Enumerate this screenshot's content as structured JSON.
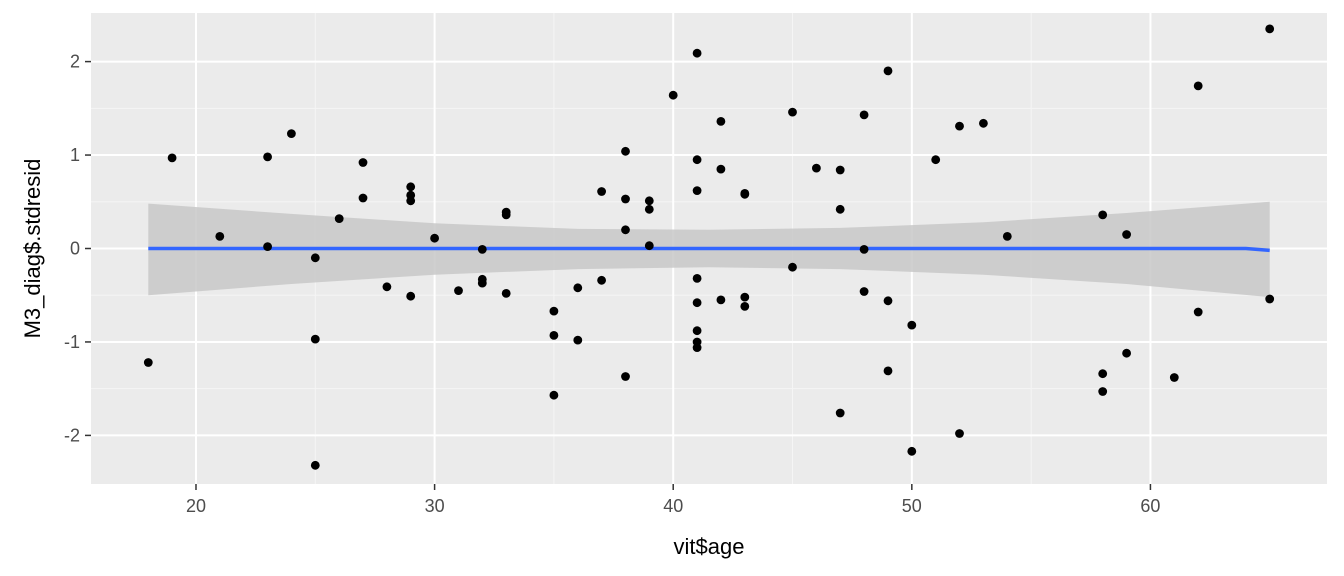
{
  "chart_data": {
    "type": "scatter",
    "xlabel": "vit$age",
    "ylabel": "M3_diag$.stdresid",
    "xlim": [
      15.6,
      67.4
    ],
    "ylim": [
      -2.52,
      2.52
    ],
    "x_ticks": [
      20,
      30,
      40,
      50,
      60
    ],
    "y_ticks": [
      -2,
      -1,
      0,
      1,
      2
    ],
    "grid": true,
    "panel_background": "#ebebeb",
    "point_color": "#000000",
    "smooth_line_color": "#3366ff",
    "confidence_band_color": "#c8c8c8",
    "points": [
      {
        "x": 18,
        "y": -1.22
      },
      {
        "x": 19,
        "y": 0.97
      },
      {
        "x": 21,
        "y": 0.13
      },
      {
        "x": 23,
        "y": 0.98
      },
      {
        "x": 23,
        "y": 0.02
      },
      {
        "x": 24,
        "y": 1.23
      },
      {
        "x": 25,
        "y": -0.1
      },
      {
        "x": 25,
        "y": -0.97
      },
      {
        "x": 25,
        "y": -2.32
      },
      {
        "x": 26,
        "y": 0.32
      },
      {
        "x": 27,
        "y": 0.92
      },
      {
        "x": 27,
        "y": 0.54
      },
      {
        "x": 28,
        "y": -0.41
      },
      {
        "x": 29,
        "y": 0.66
      },
      {
        "x": 29,
        "y": 0.57
      },
      {
        "x": 29,
        "y": 0.51
      },
      {
        "x": 29,
        "y": -0.51
      },
      {
        "x": 30,
        "y": 0.11
      },
      {
        "x": 31,
        "y": -0.45
      },
      {
        "x": 32,
        "y": -0.01
      },
      {
        "x": 32,
        "y": -0.33
      },
      {
        "x": 32,
        "y": -0.37
      },
      {
        "x": 33,
        "y": 0.39
      },
      {
        "x": 33,
        "y": 0.36
      },
      {
        "x": 33,
        "y": -0.48
      },
      {
        "x": 35,
        "y": -0.67
      },
      {
        "x": 35,
        "y": -0.93
      },
      {
        "x": 35,
        "y": -1.57
      },
      {
        "x": 36,
        "y": -0.42
      },
      {
        "x": 36,
        "y": -0.98
      },
      {
        "x": 37,
        "y": 0.61
      },
      {
        "x": 37,
        "y": -0.34
      },
      {
        "x": 38,
        "y": 1.04
      },
      {
        "x": 38,
        "y": 0.53
      },
      {
        "x": 38,
        "y": 0.2
      },
      {
        "x": 38,
        "y": -1.37
      },
      {
        "x": 39,
        "y": 0.51
      },
      {
        "x": 39,
        "y": 0.42
      },
      {
        "x": 39,
        "y": 0.03
      },
      {
        "x": 40,
        "y": 1.64
      },
      {
        "x": 41,
        "y": 2.09
      },
      {
        "x": 41,
        "y": 0.95
      },
      {
        "x": 41,
        "y": 0.62
      },
      {
        "x": 41,
        "y": -0.32
      },
      {
        "x": 41,
        "y": -0.58
      },
      {
        "x": 41,
        "y": -0.88
      },
      {
        "x": 41,
        "y": -1.0
      },
      {
        "x": 41,
        "y": -1.06
      },
      {
        "x": 42,
        "y": 1.36
      },
      {
        "x": 42,
        "y": 0.85
      },
      {
        "x": 42,
        "y": -0.55
      },
      {
        "x": 43,
        "y": 0.59
      },
      {
        "x": 43,
        "y": 0.58
      },
      {
        "x": 43,
        "y": -0.52
      },
      {
        "x": 43,
        "y": -0.62
      },
      {
        "x": 45,
        "y": 1.46
      },
      {
        "x": 45,
        "y": -0.2
      },
      {
        "x": 46,
        "y": 0.86
      },
      {
        "x": 47,
        "y": 0.84
      },
      {
        "x": 47,
        "y": 0.42
      },
      {
        "x": 47,
        "y": -1.76
      },
      {
        "x": 48,
        "y": 1.43
      },
      {
        "x": 48,
        "y": -0.01
      },
      {
        "x": 48,
        "y": -0.46
      },
      {
        "x": 49,
        "y": 1.9
      },
      {
        "x": 49,
        "y": -0.56
      },
      {
        "x": 49,
        "y": -1.31
      },
      {
        "x": 50,
        "y": -0.82
      },
      {
        "x": 50,
        "y": -2.17
      },
      {
        "x": 51,
        "y": 0.95
      },
      {
        "x": 52,
        "y": 1.31
      },
      {
        "x": 52,
        "y": -1.98
      },
      {
        "x": 53,
        "y": 1.34
      },
      {
        "x": 54,
        "y": 0.13
      },
      {
        "x": 58,
        "y": 0.36
      },
      {
        "x": 58,
        "y": -1.34
      },
      {
        "x": 58,
        "y": -1.53
      },
      {
        "x": 59,
        "y": 0.15
      },
      {
        "x": 59,
        "y": -1.12
      },
      {
        "x": 61,
        "y": -1.38
      },
      {
        "x": 62,
        "y": 1.74
      },
      {
        "x": 62,
        "y": -0.68
      },
      {
        "x": 65,
        "y": 2.35
      },
      {
        "x": 65,
        "y": -0.54
      }
    ],
    "smooth_line": [
      {
        "x": 18,
        "y": 0.0
      },
      {
        "x": 64,
        "y": 0.0
      },
      {
        "x": 65,
        "y": -0.02
      }
    ],
    "confidence_band": [
      {
        "x": 18,
        "lo": -0.5,
        "hi": 0.48
      },
      {
        "x": 24,
        "lo": -0.38,
        "hi": 0.37
      },
      {
        "x": 30,
        "lo": -0.28,
        "hi": 0.27
      },
      {
        "x": 36,
        "lo": -0.22,
        "hi": 0.21
      },
      {
        "x": 41.5,
        "lo": -0.2,
        "hi": 0.2
      },
      {
        "x": 47,
        "lo": -0.22,
        "hi": 0.22
      },
      {
        "x": 53,
        "lo": -0.28,
        "hi": 0.28
      },
      {
        "x": 59,
        "lo": -0.38,
        "hi": 0.38
      },
      {
        "x": 65,
        "lo": -0.52,
        "hi": 0.5
      }
    ]
  }
}
